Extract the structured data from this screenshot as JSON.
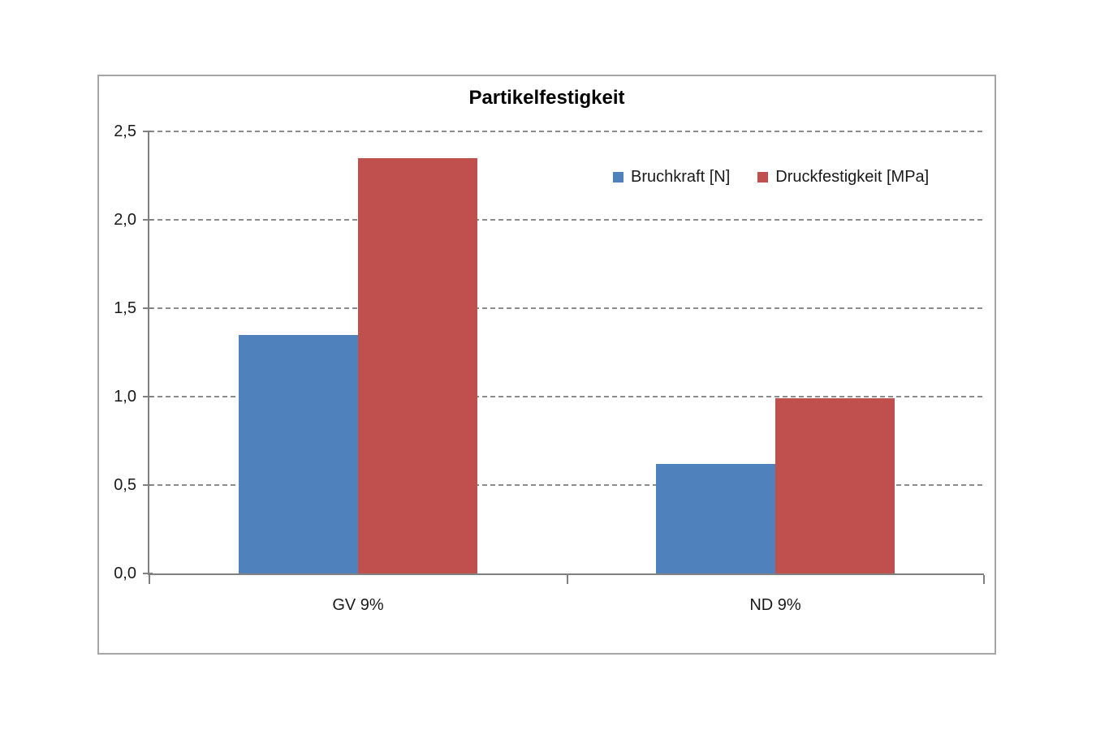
{
  "page": {
    "background": "#FFFFFF"
  },
  "chart_data": {
    "type": "bar",
    "title": "Partikelfestigkeit",
    "categories": [
      "GV 9%",
      "ND 9%"
    ],
    "series": [
      {
        "name": "Bruchkraft [N]",
        "color": "#4F81BD",
        "values": [
          1.35,
          0.62
        ]
      },
      {
        "name": "Druckfestigkeit [MPa]",
        "color": "#C0504D",
        "values": [
          2.35,
          0.99
        ]
      }
    ],
    "xlabel": "",
    "ylabel": "",
    "ylim": [
      0,
      2.5
    ],
    "ytick_step": 0.5,
    "ytick_labels": [
      "0,0",
      "0,5",
      "1,0",
      "1,5",
      "2,0",
      "2,5"
    ],
    "decimal_separator": ",",
    "grid": "horizontal-dashed",
    "legend_position": "top-right-inside",
    "colors": {
      "axis": "#808080",
      "gridline": "#8C8C8C",
      "chart_border": "#A6A6A6",
      "text": "#1A1A1A",
      "background": "#FFFFFF"
    }
  }
}
